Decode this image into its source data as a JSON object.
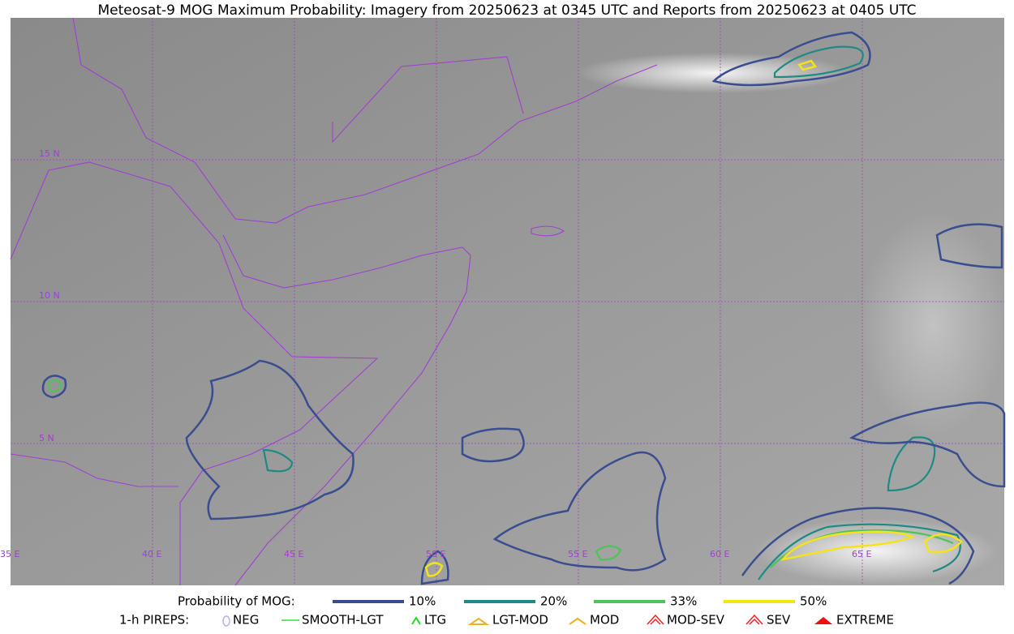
{
  "header": {
    "title": "Meteosat-9 MOG Maximum Probability: Imagery from 20250623 at 0345 UTC and Reports from 20250623 at 0405 UTC"
  },
  "map": {
    "lat_labels": [
      "15 N",
      "10 N",
      "5 N"
    ],
    "lon_labels": [
      "35 E",
      "40 E",
      "45 E",
      "50 E",
      "55 E",
      "60 E",
      "65 E"
    ]
  },
  "legend": {
    "mog_title": "Probability of MOG:",
    "mog_items": [
      "10%",
      "20%",
      "33%",
      "50%"
    ],
    "pirep_title": "1-h PIREPS:",
    "pirep_items": [
      "NEG",
      "SMOOTH-LGT",
      "LTG",
      "LGT-MOD",
      "MOD",
      "MOD-SEV",
      "SEV",
      "EXTREME"
    ]
  }
}
